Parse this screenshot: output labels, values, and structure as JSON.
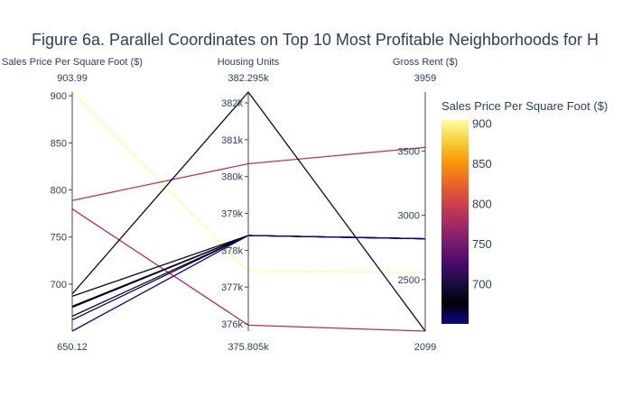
{
  "chart_data": {
    "type": "parallel_coordinates",
    "title": "Figure 6a. Parallel Coordinates on Top 10 Most Profitable Neighborhoods for H",
    "dimensions": [
      {
        "label": "Sales Price Per Square Foot ($)",
        "range": [
          650.12,
          903.99
        ],
        "range_labels": [
          "903.99",
          "650.12"
        ],
        "ticks": [
          700,
          750,
          800,
          850,
          900
        ],
        "tick_labels": [
          "700",
          "750",
          "800",
          "850",
          "900"
        ]
      },
      {
        "label": "Housing Units",
        "range": [
          375805,
          382295
        ],
        "range_labels": [
          "382.295k",
          "375.805k"
        ],
        "ticks": [
          376000,
          377000,
          378000,
          379000,
          380000,
          381000,
          382000
        ],
        "tick_labels": [
          "376k",
          "377k",
          "378k",
          "379k",
          "380k",
          "381k",
          "382k"
        ]
      },
      {
        "label": "Gross Rent ($)",
        "range": [
          2099,
          3959
        ],
        "range_labels": [
          "3959",
          "2099"
        ],
        "ticks": [
          2500,
          3000,
          3500
        ],
        "tick_labels": [
          "2500",
          "3000",
          "3500"
        ]
      }
    ],
    "records": [
      [
        903.99,
        377427,
        2555
      ],
      [
        788.84,
        380348,
        3528
      ],
      [
        779.81,
        375967,
        2099
      ],
      [
        689.56,
        382295,
        2099
      ],
      [
        687.09,
        378401,
        2818
      ],
      [
        676.51,
        378401,
        2818
      ],
      [
        675.35,
        378401,
        2818
      ],
      [
        665.96,
        378401,
        2818
      ],
      [
        662.01,
        378401,
        2818
      ],
      [
        650.12,
        378401,
        2818
      ]
    ],
    "colorbar": {
      "title": "Sales Price Per Square Foot ($)",
      "cmin": 650.12,
      "cmax": 903.99,
      "ticks": [
        700,
        750,
        800,
        850,
        900
      ],
      "tick_labels": [
        "700",
        "750",
        "800",
        "850",
        "900"
      ],
      "colorscale": [
        "#0d0887",
        "#000004",
        "#1b0c41",
        "#4a0c6b",
        "#781c6d",
        "#a52c60",
        "#cf4446",
        "#ed6925",
        "#fb9b06",
        "#f7d13d",
        "#fcffa4"
      ]
    }
  }
}
